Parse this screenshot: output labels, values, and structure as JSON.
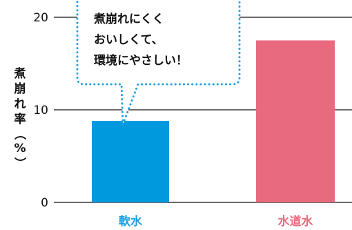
{
  "chart_data": {
    "type": "bar",
    "categories": [
      "軟水",
      "水道水"
    ],
    "values": [
      8.8,
      17.5
    ],
    "colors": [
      "#0099dd",
      "#e86a7e"
    ],
    "category_label_colors": [
      "#1a9fe0",
      "#e86a7e"
    ],
    "ylabel": "煮崩れ率（%）",
    "ylim": [
      0,
      20
    ],
    "yticks": [
      0,
      10,
      20
    ],
    "grid": "horizontal",
    "annotation": [
      "煮崩れにくく",
      "おいしくて、",
      "環境にやさしい！"
    ]
  }
}
